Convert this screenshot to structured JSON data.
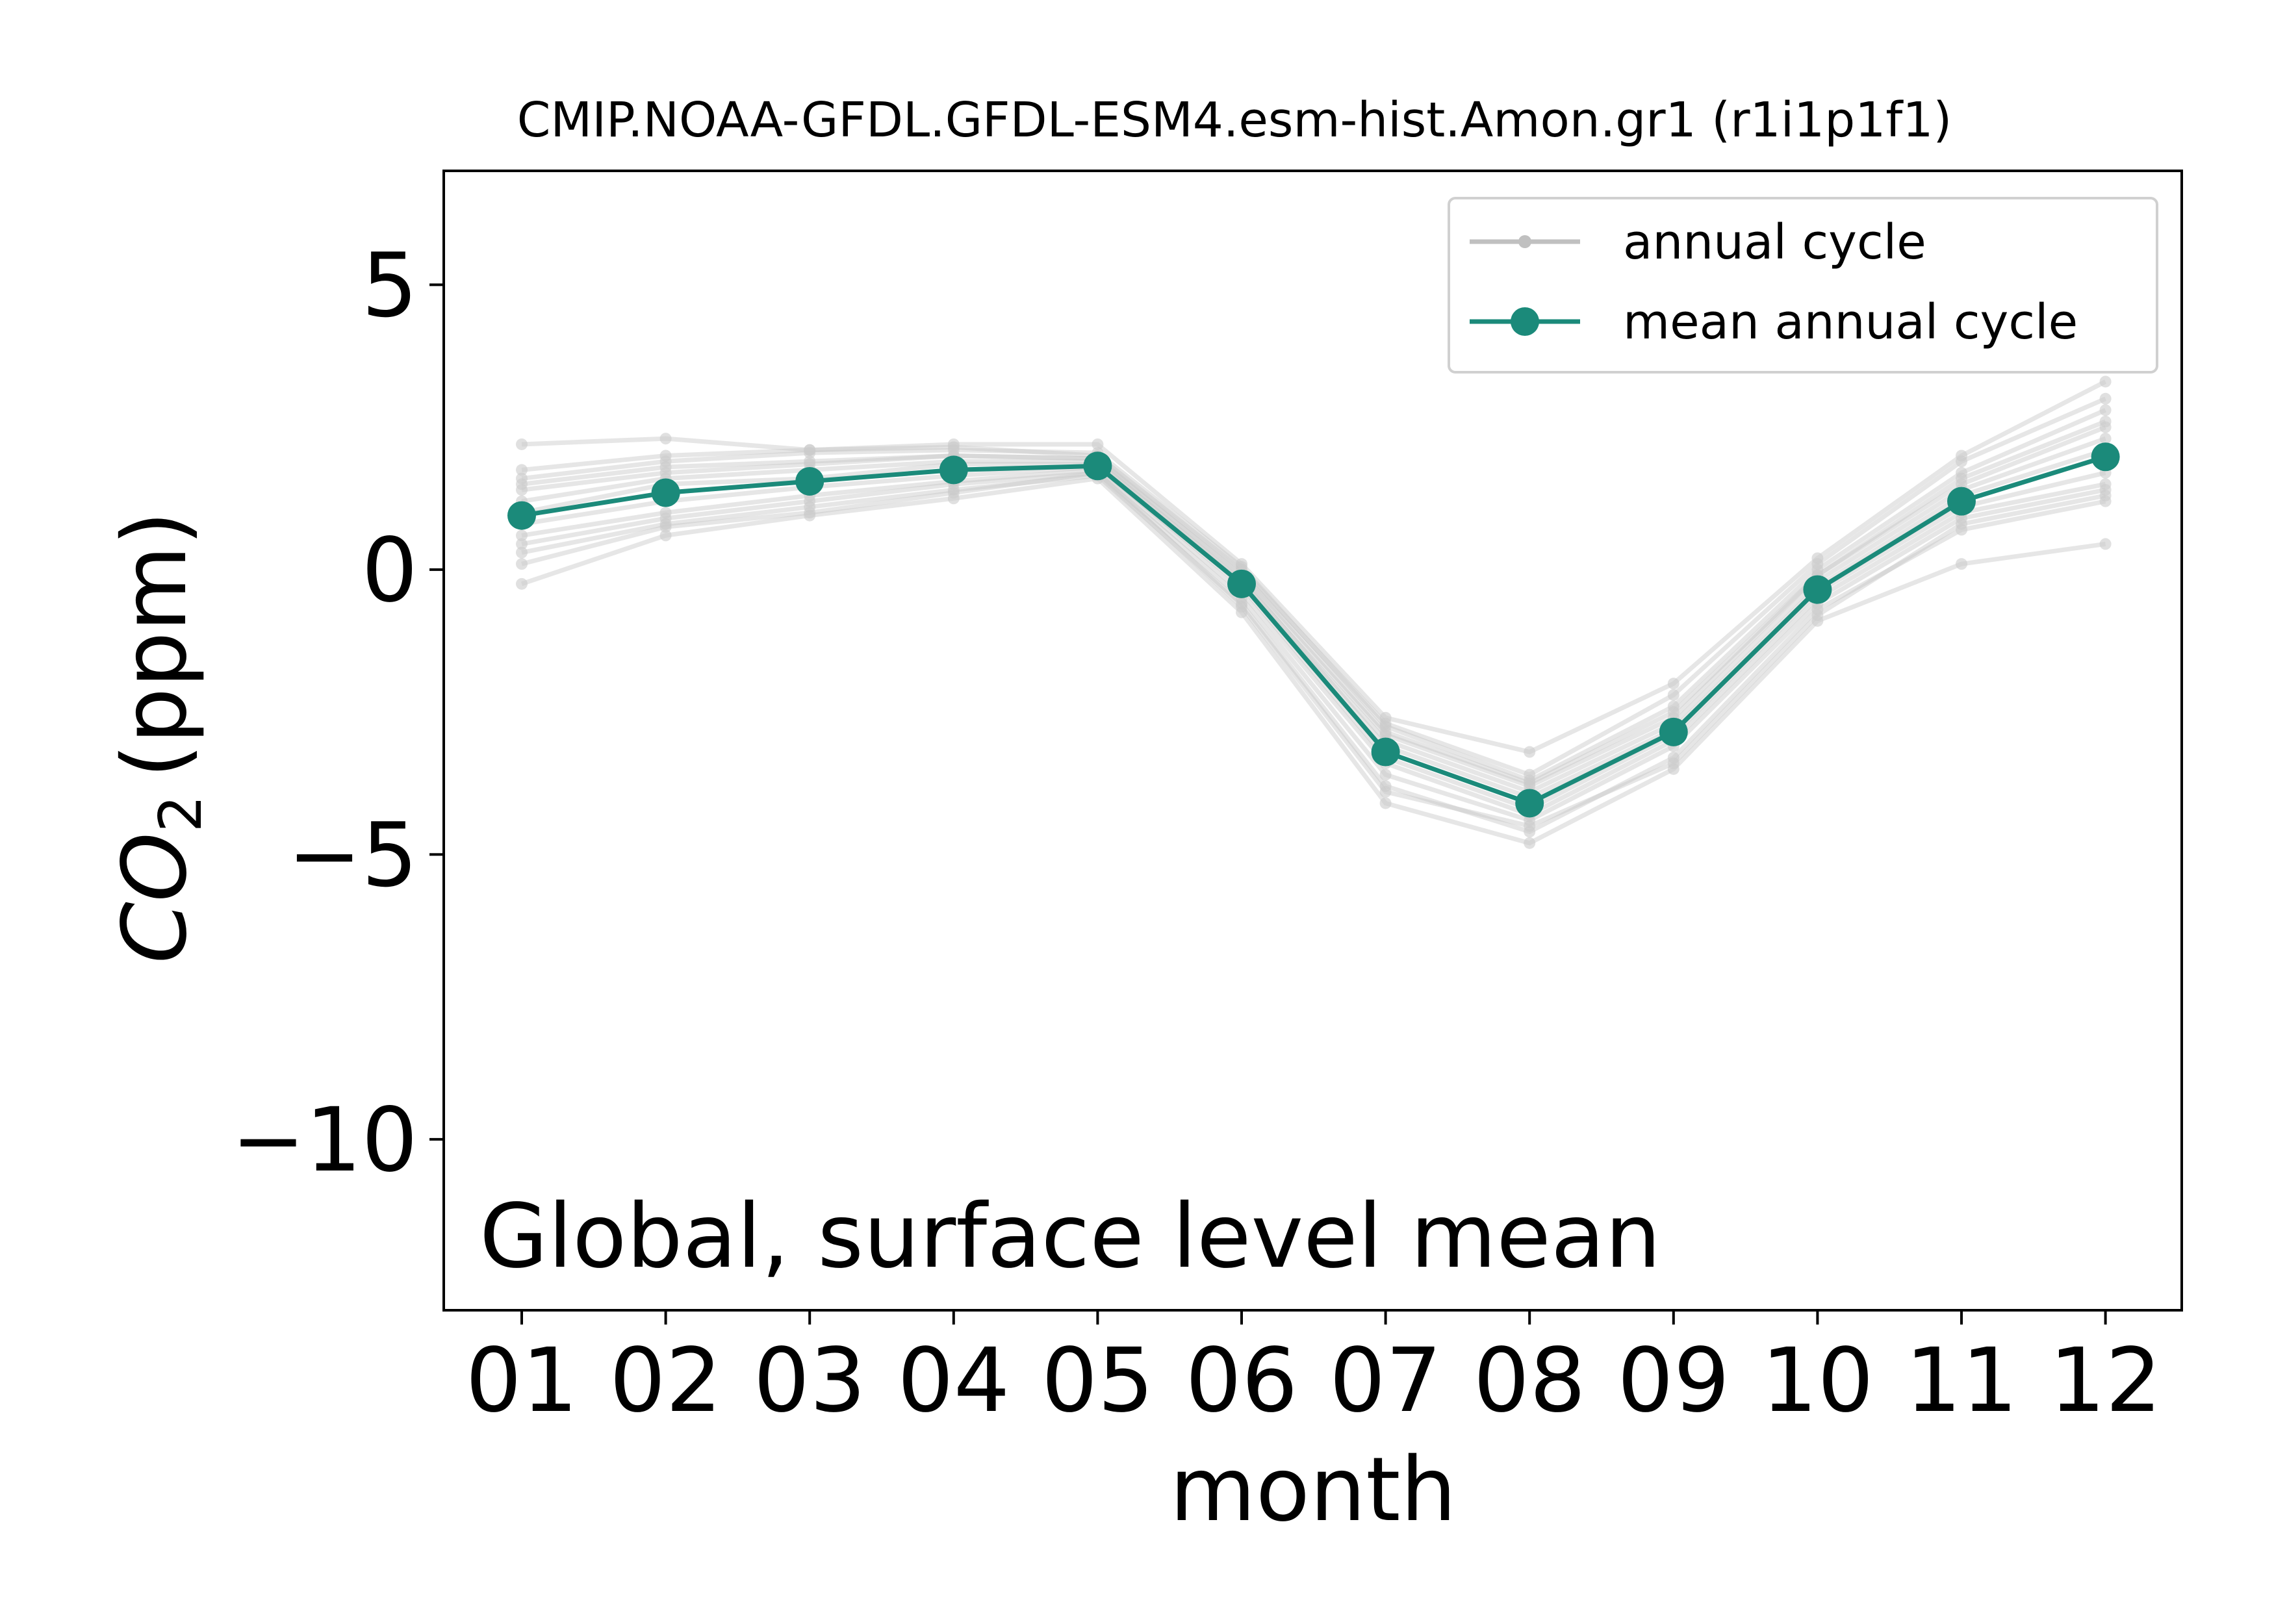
{
  "chart_data": {
    "type": "line",
    "title": "CMIP.NOAA-GFDL.GFDL-ESM4.esm-hist.Amon.gr1 (r1i1p1f1)",
    "xlabel": "month",
    "ylabel": "CO",
    "ylabel_subscript": "2",
    "ylabel_unit": "(ppm)",
    "annotation": "Global, surface level mean",
    "categories": [
      "01",
      "02",
      "03",
      "04",
      "05",
      "06",
      "07",
      "08",
      "09",
      "10",
      "11",
      "12"
    ],
    "ylim": [
      -13,
      7
    ],
    "yticks": [
      {
        "value": 5,
        "label": "5"
      },
      {
        "value": 0,
        "label": "0"
      },
      {
        "value": -5,
        "label": "−5"
      },
      {
        "value": -10,
        "label": "−10"
      }
    ],
    "grid": false,
    "legend": {
      "position": "top-right",
      "entries": [
        {
          "label": "annual cycle",
          "color": "#c0c0c0"
        },
        {
          "label": "mean annual cycle",
          "color": "#1b8a7a"
        }
      ]
    },
    "series": [
      {
        "name": "mean annual cycle",
        "color": "#1b8a7a",
        "values": [
          0.95,
          1.35,
          1.55,
          1.75,
          1.82,
          -0.25,
          -3.2,
          -4.1,
          -2.85,
          -0.35,
          1.2,
          1.98
        ]
      }
    ],
    "annual_cycles": [
      [
        0.95,
        1.35,
        1.55,
        1.75,
        1.82,
        -0.25,
        -3.2,
        -4.1,
        -2.85,
        -0.35,
        1.2,
        1.98
      ],
      [
        2.2,
        2.3,
        2.1,
        2.2,
        2.2,
        0.1,
        -2.6,
        -3.2,
        -2.0,
        0.2,
        2.0,
        3.3
      ],
      [
        -0.25,
        0.6,
        0.95,
        1.25,
        1.6,
        -0.75,
        -4.1,
        -4.8,
        -3.5,
        -0.9,
        0.1,
        0.45
      ],
      [
        1.75,
        2.0,
        2.1,
        2.15,
        2.0,
        0.0,
        -2.7,
        -3.6,
        -2.2,
        0.1,
        1.9,
        3.0
      ],
      [
        0.3,
        0.8,
        1.1,
        1.4,
        1.65,
        -0.6,
        -3.8,
        -4.6,
        -3.3,
        -0.7,
        0.7,
        1.2
      ],
      [
        1.5,
        1.8,
        1.9,
        2.0,
        1.95,
        -0.1,
        -2.9,
        -3.8,
        -2.6,
        -0.1,
        1.6,
        2.6
      ],
      [
        0.6,
        1.0,
        1.3,
        1.55,
        1.75,
        -0.4,
        -3.4,
        -4.3,
        -3.0,
        -0.5,
        1.0,
        1.5
      ],
      [
        1.2,
        1.6,
        1.75,
        1.9,
        1.9,
        -0.2,
        -3.0,
        -3.9,
        -2.7,
        -0.2,
        1.4,
        2.3
      ],
      [
        0.1,
        0.75,
        1.0,
        1.35,
        1.7,
        -0.65,
        -3.9,
        -4.5,
        -3.4,
        -0.8,
        0.8,
        1.3
      ],
      [
        1.6,
        1.9,
        2.05,
        2.1,
        2.05,
        0.05,
        -2.75,
        -3.7,
        -2.4,
        0.0,
        1.7,
        2.8
      ],
      [
        0.8,
        1.2,
        1.45,
        1.65,
        1.8,
        -0.3,
        -3.3,
        -4.2,
        -2.9,
        -0.4,
        1.1,
        1.7
      ],
      [
        1.0,
        1.5,
        1.6,
        1.85,
        1.85,
        -0.15,
        -3.1,
        -4.0,
        -2.8,
        -0.3,
        1.3,
        2.1
      ],
      [
        0.45,
        0.9,
        1.2,
        1.5,
        1.7,
        -0.5,
        -3.6,
        -4.4,
        -3.1,
        -0.6,
        0.9,
        1.4
      ],
      [
        1.4,
        1.7,
        1.85,
        2.0,
        1.95,
        -0.05,
        -2.85,
        -3.75,
        -2.5,
        -0.1,
        1.5,
        2.5
      ]
    ]
  }
}
